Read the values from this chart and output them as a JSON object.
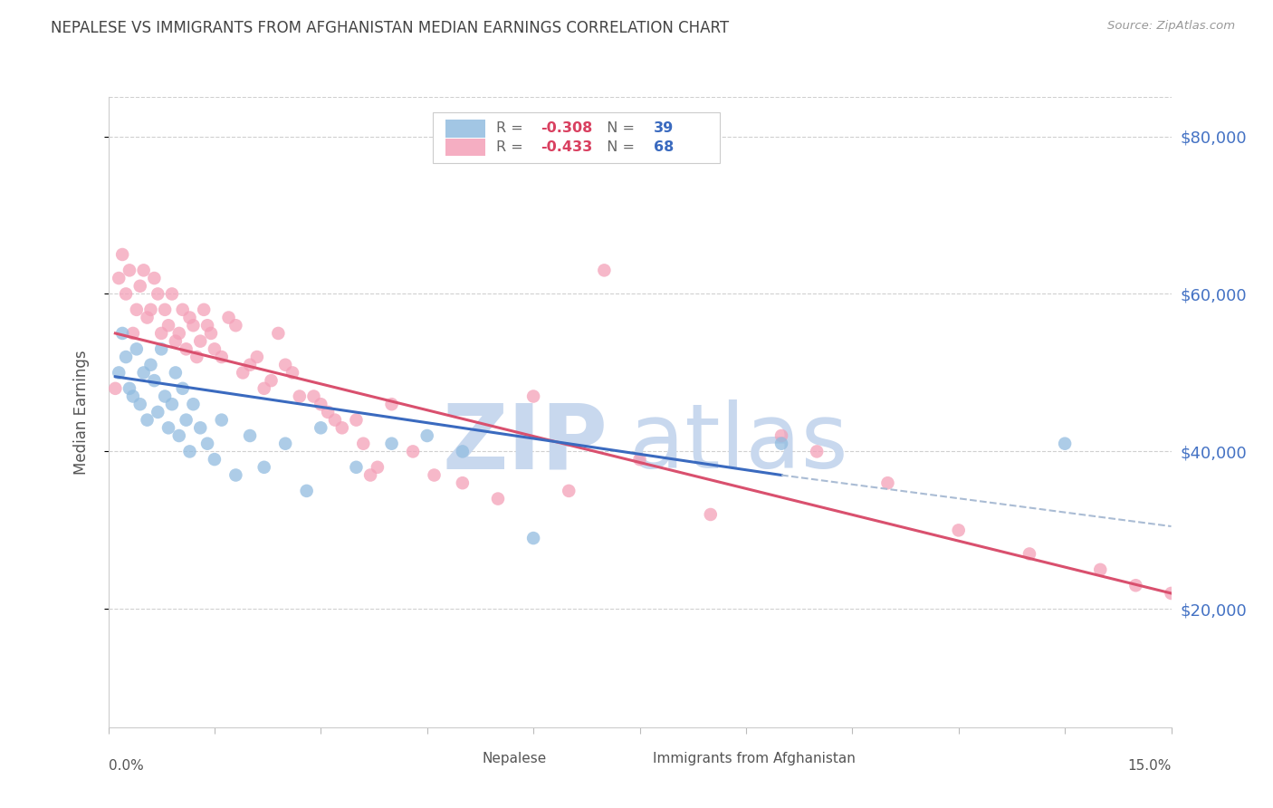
{
  "title": "NEPALESE VS IMMIGRANTS FROM AFGHANISTAN MEDIAN EARNINGS CORRELATION CHART",
  "source": "Source: ZipAtlas.com",
  "ylabel": "Median Earnings",
  "y_ticks": [
    20000,
    40000,
    60000,
    80000
  ],
  "y_tick_labels": [
    "$20,000",
    "$40,000",
    "$60,000",
    "$80,000"
  ],
  "x_min": 0.0,
  "x_max": 15.0,
  "y_min": 5000,
  "y_max": 85000,
  "nepalese_R": -0.308,
  "nepalese_N": 39,
  "afghanistan_R": -0.433,
  "afghanistan_N": 68,
  "nepalese_color": "#92bce0",
  "afghanistan_color": "#f4a0b8",
  "nepalese_line_color": "#3a6abf",
  "afghanistan_line_color": "#d9506e",
  "dashed_line_color": "#aabcd4",
  "title_color": "#444444",
  "source_color": "#999999",
  "axis_label_color": "#4472c4",
  "watermark_color": "#c8d8ee",
  "background_color": "#ffffff",
  "nepalese_x": [
    0.15,
    0.2,
    0.25,
    0.3,
    0.35,
    0.4,
    0.45,
    0.5,
    0.55,
    0.6,
    0.65,
    0.7,
    0.75,
    0.8,
    0.85,
    0.9,
    0.95,
    1.0,
    1.05,
    1.1,
    1.15,
    1.2,
    1.3,
    1.4,
    1.5,
    1.6,
    1.8,
    2.0,
    2.2,
    2.5,
    2.8,
    3.0,
    3.5,
    4.0,
    4.5,
    5.0,
    6.0,
    9.5,
    13.5
  ],
  "nepalese_y": [
    50000,
    55000,
    52000,
    48000,
    47000,
    53000,
    46000,
    50000,
    44000,
    51000,
    49000,
    45000,
    53000,
    47000,
    43000,
    46000,
    50000,
    42000,
    48000,
    44000,
    40000,
    46000,
    43000,
    41000,
    39000,
    44000,
    37000,
    42000,
    38000,
    41000,
    35000,
    43000,
    38000,
    41000,
    42000,
    40000,
    29000,
    41000,
    41000
  ],
  "afghanistan_x": [
    0.1,
    0.15,
    0.2,
    0.25,
    0.3,
    0.35,
    0.4,
    0.45,
    0.5,
    0.55,
    0.6,
    0.65,
    0.7,
    0.75,
    0.8,
    0.85,
    0.9,
    0.95,
    1.0,
    1.05,
    1.1,
    1.15,
    1.2,
    1.25,
    1.3,
    1.35,
    1.4,
    1.45,
    1.5,
    1.6,
    1.7,
    1.8,
    1.9,
    2.0,
    2.1,
    2.2,
    2.3,
    2.4,
    2.5,
    2.6,
    2.7,
    2.9,
    3.0,
    3.1,
    3.2,
    3.3,
    3.5,
    3.6,
    3.8,
    4.0,
    4.3,
    4.6,
    5.0,
    5.5,
    6.0,
    6.5,
    7.5,
    8.5,
    9.5,
    10.0,
    11.0,
    12.0,
    13.0,
    14.0,
    14.5,
    15.0,
    7.0,
    3.7
  ],
  "afghanistan_y": [
    48000,
    62000,
    65000,
    60000,
    63000,
    55000,
    58000,
    61000,
    63000,
    57000,
    58000,
    62000,
    60000,
    55000,
    58000,
    56000,
    60000,
    54000,
    55000,
    58000,
    53000,
    57000,
    56000,
    52000,
    54000,
    58000,
    56000,
    55000,
    53000,
    52000,
    57000,
    56000,
    50000,
    51000,
    52000,
    48000,
    49000,
    55000,
    51000,
    50000,
    47000,
    47000,
    46000,
    45000,
    44000,
    43000,
    44000,
    41000,
    38000,
    46000,
    40000,
    37000,
    36000,
    34000,
    47000,
    35000,
    39000,
    32000,
    42000,
    40000,
    36000,
    30000,
    27000,
    25000,
    23000,
    22000,
    63000,
    37000
  ],
  "nep_line_x0": 0.1,
  "nep_line_x1": 9.5,
  "nep_line_y0": 49500,
  "nep_line_y1": 37000,
  "nep_dash_x0": 9.5,
  "nep_dash_x1": 15.0,
  "nep_dash_y0": 37000,
  "nep_dash_y1": 30500,
  "afg_line_x0": 0.1,
  "afg_line_x1": 15.0,
  "afg_line_y0": 55000,
  "afg_line_y1": 22000
}
